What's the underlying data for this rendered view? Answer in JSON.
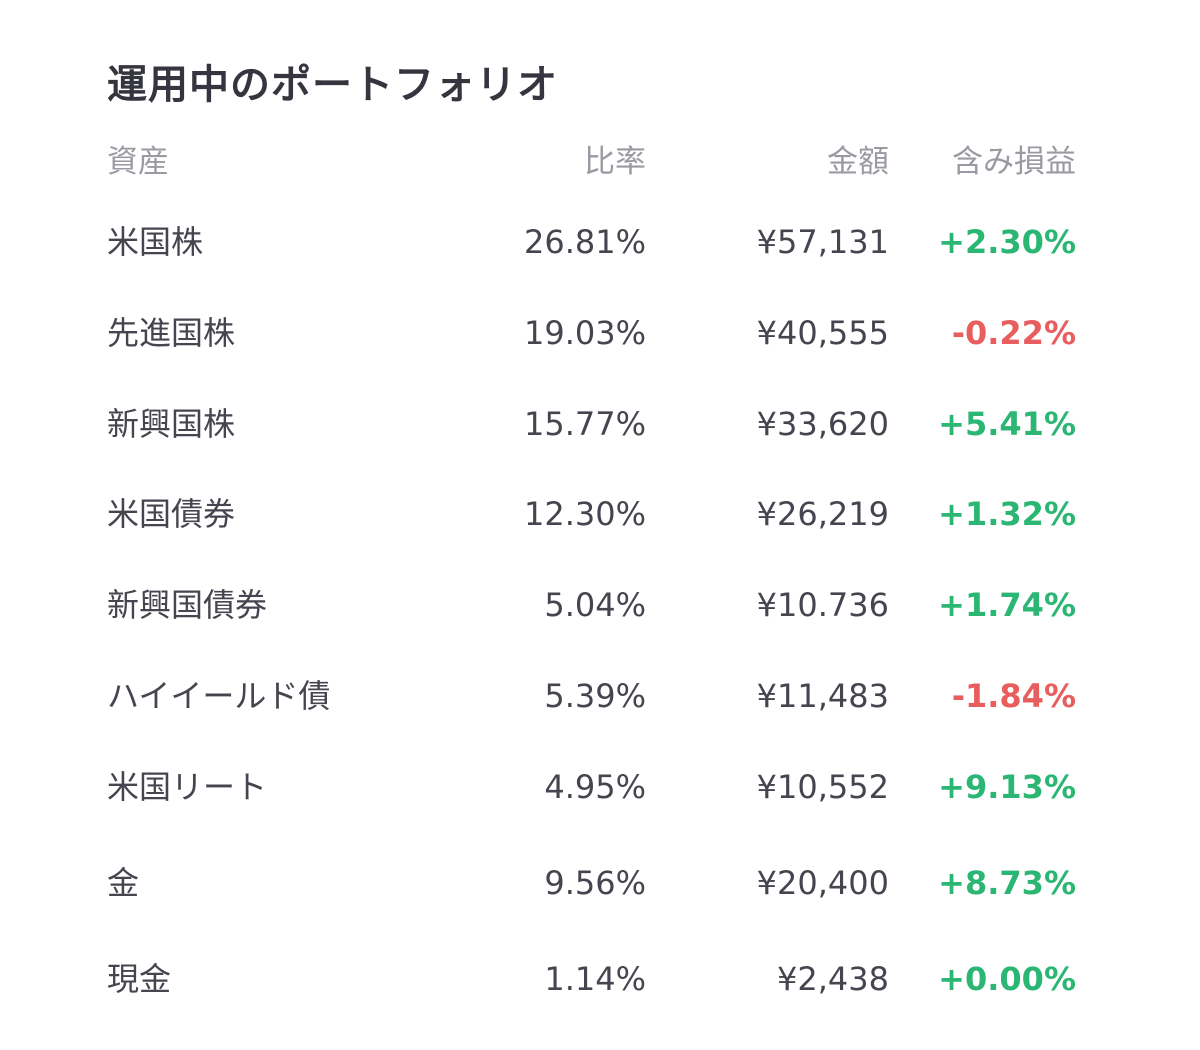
{
  "title": "運用中のポートフォリオ",
  "colors": {
    "positive": "#2bb673",
    "negative": "#e85d5d",
    "header_text": "#9a9aa2",
    "body_text": "#45454f"
  },
  "headers": {
    "asset": "資産",
    "ratio": "比率",
    "amount": "金額",
    "pl": "含み損益"
  },
  "rows": [
    {
      "asset": "米国株",
      "ratio": "26.81%",
      "amount": "¥57,131",
      "pl": "+2.30%",
      "trend": "positive"
    },
    {
      "asset": "先進国株",
      "ratio": "19.03%",
      "amount": "¥40,555",
      "pl": "-0.22%",
      "trend": "negative"
    },
    {
      "asset": "新興国株",
      "ratio": "15.77%",
      "amount": "¥33,620",
      "pl": "+5.41%",
      "trend": "positive"
    },
    {
      "asset": "米国債券",
      "ratio": "12.30%",
      "amount": "¥26,219",
      "pl": "+1.32%",
      "trend": "positive"
    },
    {
      "asset": "新興国債券",
      "ratio": "5.04%",
      "amount": "¥10.736",
      "pl": "+1.74%",
      "trend": "positive"
    },
    {
      "asset": "ハイイールド債",
      "ratio": "5.39%",
      "amount": "¥11,483",
      "pl": "-1.84%",
      "trend": "negative"
    },
    {
      "asset": "米国リート",
      "ratio": "4.95%",
      "amount": "¥10,552",
      "pl": "+9.13%",
      "trend": "positive"
    },
    {
      "asset": "金",
      "ratio": "9.56%",
      "amount": "¥20,400",
      "pl": "+8.73%",
      "trend": "positive"
    },
    {
      "asset": "現金",
      "ratio": "1.14%",
      "amount": "¥2,438",
      "pl": "+0.00%",
      "trend": "positive"
    }
  ]
}
